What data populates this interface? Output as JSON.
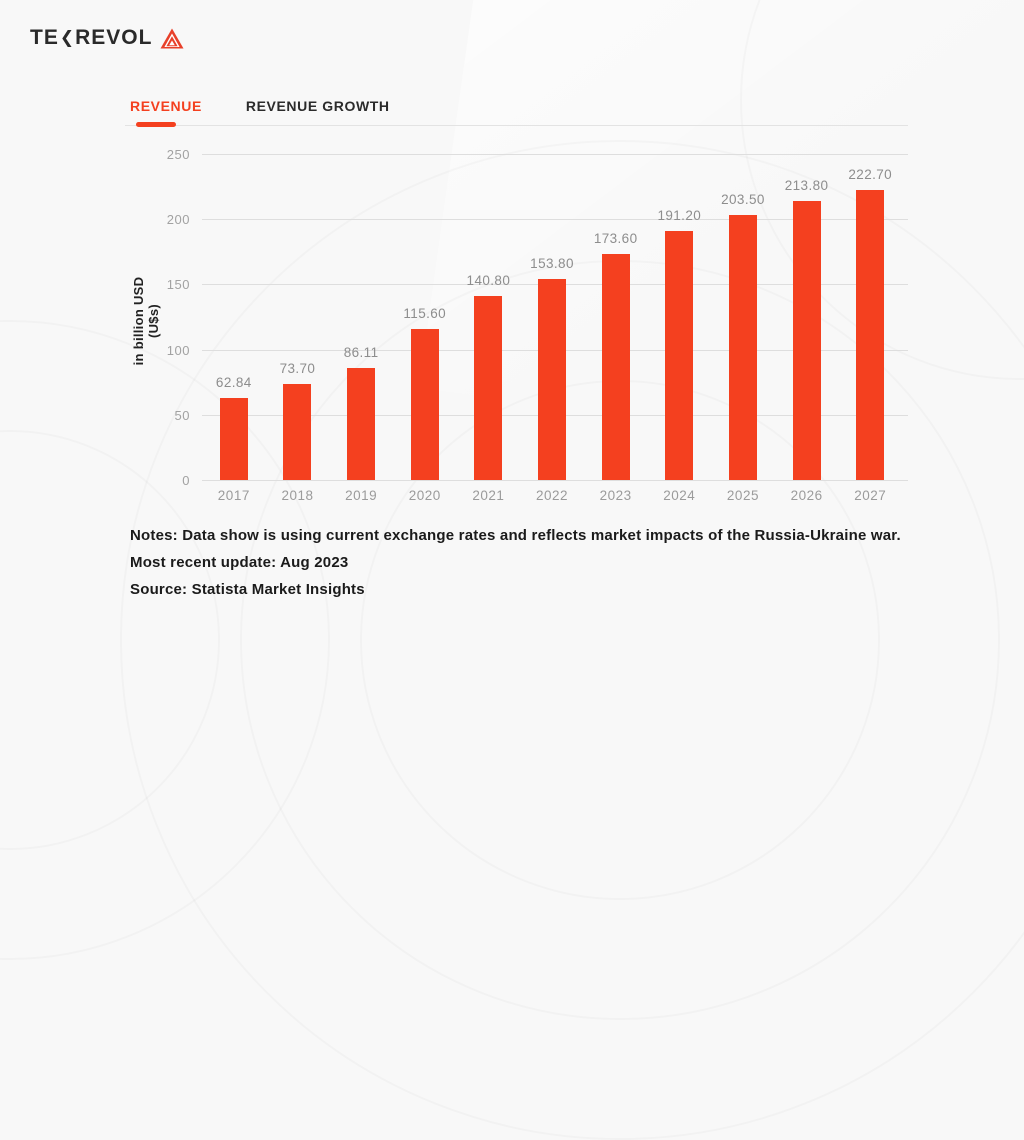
{
  "brand": {
    "logo_text_1": "TE",
    "logo_chevron": "❮",
    "logo_text_2": "REVOL",
    "logo_mark": "triangle-logo"
  },
  "tabs": [
    {
      "label": "REVENUE",
      "active": true
    },
    {
      "label": "REVENUE GROWTH",
      "active": false
    }
  ],
  "chart_data": {
    "type": "bar",
    "title": "",
    "ylabel": "in billion USD (U$s)",
    "xlabel": "",
    "categories": [
      "2017",
      "2018",
      "2019",
      "2020",
      "2021",
      "2022",
      "2023",
      "2024",
      "2025",
      "2026",
      "2027"
    ],
    "values": [
      62.84,
      73.7,
      86.11,
      115.6,
      140.8,
      153.8,
      173.6,
      191.2,
      203.5,
      213.8,
      222.7
    ],
    "value_labels": [
      "62.84",
      "73.70",
      "86.11",
      "115.60",
      "140.80",
      "153.80",
      "173.60",
      "191.20",
      "203.50",
      "213.80",
      "222.70"
    ],
    "y_ticks": [
      "250",
      "200",
      "150",
      "100",
      "50",
      "0"
    ],
    "ylim": [
      0,
      250
    ],
    "grid": true,
    "legend": "none",
    "bar_color": "#f4401f"
  },
  "notes": {
    "line1": "Notes: Data show is using current exchange rates and reflects market impacts of the Russia-Ukraine war.",
    "line2": "Most recent update: Aug 2023",
    "line3": "Source: Statista Market Insights"
  },
  "colors": {
    "accent": "#f4401f",
    "text_dark": "#1d1d1d",
    "text_gray": "#8d8d8d",
    "grid": "#dedede",
    "background": "#f8f8f8"
  }
}
